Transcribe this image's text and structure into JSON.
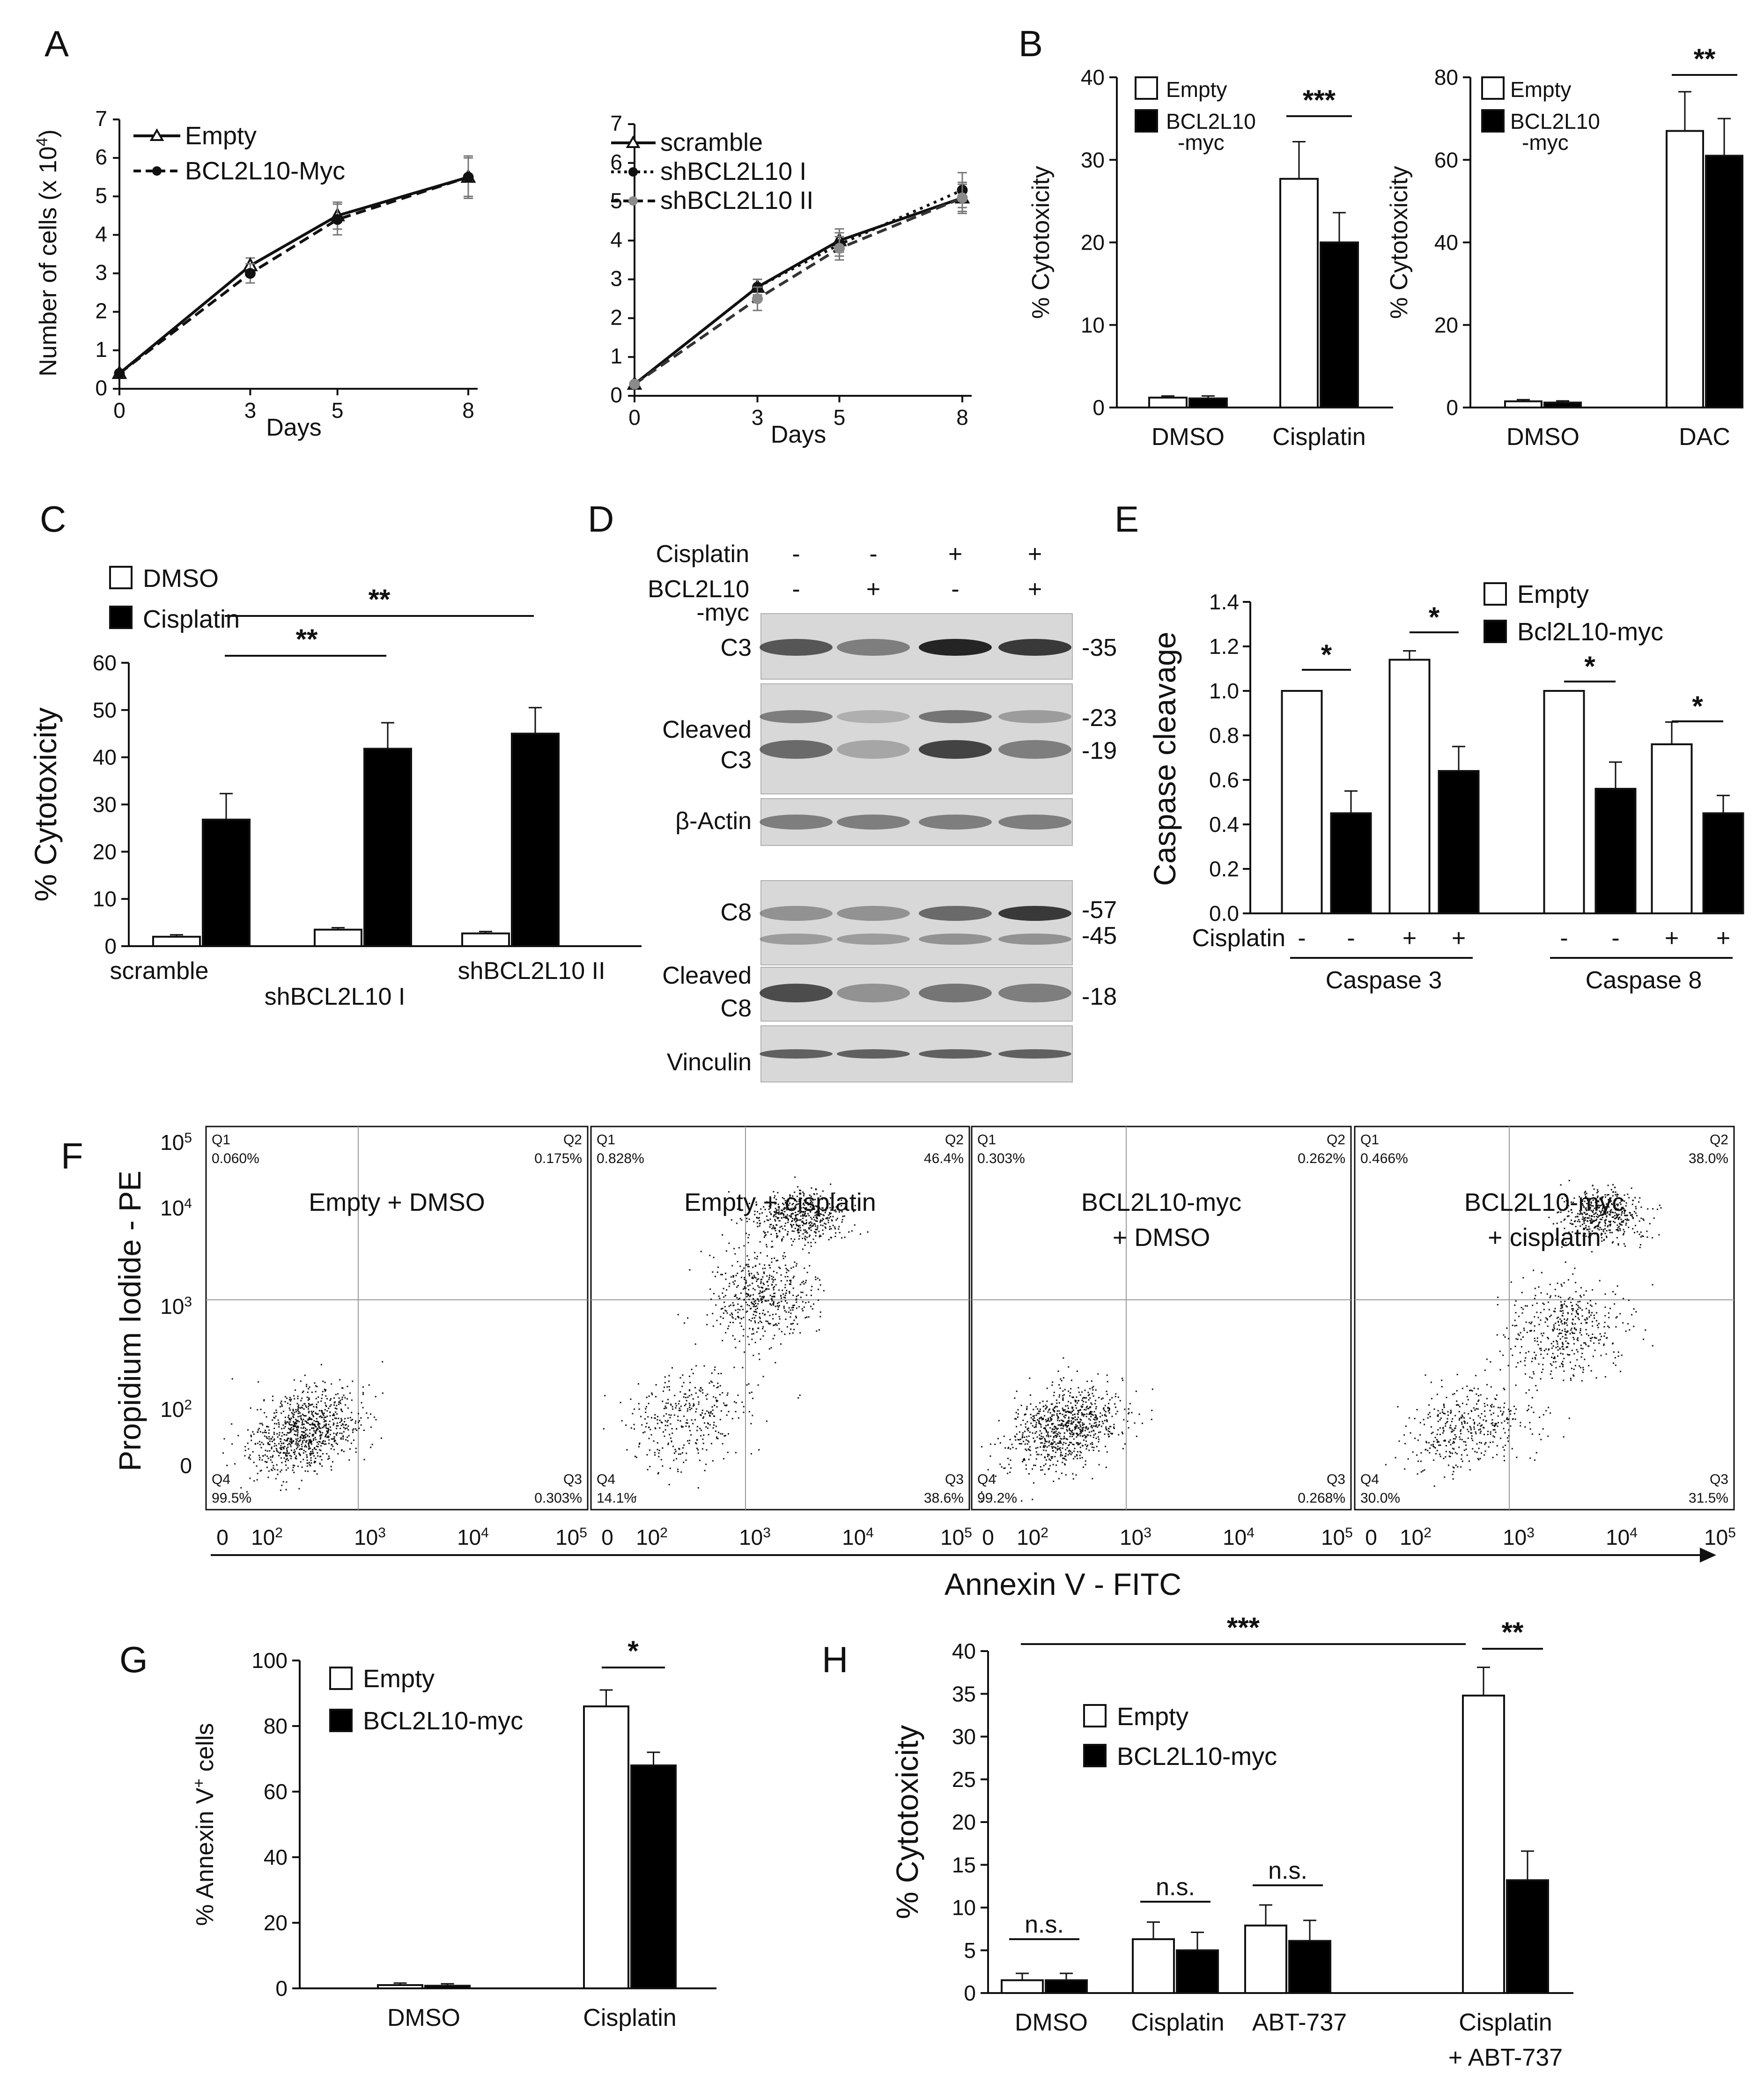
{
  "panel_letters": [
    "A",
    "B",
    "C",
    "D",
    "E",
    "F",
    "G",
    "H"
  ],
  "chart_data": [
    {
      "id": "A1",
      "type": "line",
      "ylabel": "Number of cells (x 10^4)",
      "ylabel_pre": "Number of cells (x 10",
      "ylabel_sup": "4",
      "ylabel_post": ")",
      "xlabel": "Days",
      "x": [
        0,
        3,
        5,
        8
      ],
      "xticks": [
        "0",
        "3",
        "5",
        "8"
      ],
      "ylim": [
        0,
        7
      ],
      "yticks": [
        "0",
        "1",
        "2",
        "3",
        "4",
        "5",
        "6",
        "7"
      ],
      "series": [
        {
          "name": "Empty",
          "values": [
            0.4,
            3.2,
            4.5,
            5.5
          ],
          "err": [
            0.05,
            0.2,
            0.35,
            0.55
          ],
          "marker": "triangle-open",
          "dash": "solid"
        },
        {
          "name": "BCL2L10-Myc",
          "values": [
            0.4,
            3.0,
            4.4,
            5.5
          ],
          "err": [
            0.05,
            0.25,
            0.4,
            0.5
          ],
          "marker": "circle",
          "dash": "dashed"
        }
      ]
    },
    {
      "id": "A2",
      "type": "line",
      "xlabel": "Days",
      "x": [
        0,
        3,
        5,
        8
      ],
      "xticks": [
        "0",
        "3",
        "5",
        "8"
      ],
      "ylim": [
        0,
        7
      ],
      "yticks": [
        "0",
        "1",
        "2",
        "3",
        "4",
        "5",
        "6",
        "7"
      ],
      "series": [
        {
          "name": "scramble",
          "values": [
            0.3,
            2.8,
            4.0,
            5.1
          ],
          "err": [
            0.05,
            0.2,
            0.3,
            0.35
          ],
          "marker": "triangle-open",
          "dash": "solid"
        },
        {
          "name": "shBCL2L10 I",
          "values": [
            0.3,
            2.8,
            3.9,
            5.3
          ],
          "err": [
            0.05,
            0.2,
            0.3,
            0.45
          ],
          "marker": "circle",
          "dash": "dotted"
        },
        {
          "name": "shBCL2L10 II",
          "values": [
            0.3,
            2.5,
            3.8,
            5.1
          ],
          "err": [
            0.05,
            0.3,
            0.3,
            0.4
          ],
          "marker": "circle-gray",
          "dash": "dashed"
        }
      ]
    },
    {
      "id": "B1",
      "type": "bar",
      "ylabel": "% Cytotoxicity",
      "categories": [
        "DMSO",
        "Cisplatin"
      ],
      "ylim": [
        0,
        40
      ],
      "yticks": [
        "0",
        "10",
        "20",
        "30",
        "40"
      ],
      "series": [
        {
          "name": "Empty",
          "values": [
            1.2,
            27.7
          ],
          "err": [
            0.2,
            4.5
          ]
        },
        {
          "name": "BCL2L10 -myc",
          "values": [
            1.1,
            20.0
          ],
          "err": [
            0.3,
            3.6
          ]
        }
      ],
      "legend": [
        "Empty",
        "BCL2L10",
        "-myc"
      ],
      "significance": [
        {
          "label": "***",
          "cat": 1
        }
      ]
    },
    {
      "id": "B2",
      "type": "bar",
      "ylabel": "% Cytotoxicity",
      "categories": [
        "DMSO",
        "DAC"
      ],
      "ylim": [
        0,
        80
      ],
      "yticks": [
        "0",
        "20",
        "40",
        "60",
        "80"
      ],
      "series": [
        {
          "name": "Empty",
          "values": [
            1.5,
            67.0
          ],
          "err": [
            0.4,
            9.5
          ]
        },
        {
          "name": "BCL2L10 -myc",
          "values": [
            1.2,
            61.0
          ],
          "err": [
            0.4,
            9.0
          ]
        }
      ],
      "legend": [
        "Empty",
        "BCL2L10",
        "-myc"
      ],
      "significance": [
        {
          "label": "**",
          "cat": 1
        }
      ]
    },
    {
      "id": "C",
      "type": "bar",
      "ylabel": "% Cytotoxicity",
      "categories": [
        "scramble",
        "shBCL2L10 I",
        "shBCL2L10 II"
      ],
      "ylim": [
        0,
        60
      ],
      "yticks": [
        "0",
        "10",
        "20",
        "30",
        "40",
        "50",
        "60"
      ],
      "series": [
        {
          "name": "DMSO",
          "values": [
            2.0,
            3.5,
            2.7
          ],
          "err": [
            0.4,
            0.4,
            0.4
          ]
        },
        {
          "name": "Cisplatin",
          "values": [
            26.8,
            41.8,
            45.0
          ],
          "err": [
            5.5,
            5.5,
            5.5
          ]
        }
      ],
      "significance": [
        {
          "label": "**",
          "from": 0,
          "to": 1
        },
        {
          "label": "**",
          "from": 0,
          "to": 2
        }
      ]
    },
    {
      "id": "E",
      "type": "bar",
      "ylabel": "Caspase cleavage",
      "ylim": [
        0,
        1.4
      ],
      "yticks": [
        "0.0",
        "0.2",
        "0.4",
        "0.6",
        "0.8",
        "1.0",
        "1.2",
        "1.4"
      ],
      "bars": [
        {
          "group": "Caspase 3",
          "cisplatin": "-",
          "series": "Empty",
          "value": 1.0,
          "err": 0
        },
        {
          "group": "Caspase 3",
          "cisplatin": "-",
          "series": "Bcl2L10-myc",
          "value": 0.45,
          "err": 0.1
        },
        {
          "group": "Caspase 3",
          "cisplatin": "+",
          "series": "Empty",
          "value": 1.14,
          "err": 0.04
        },
        {
          "group": "Caspase 3",
          "cisplatin": "+",
          "series": "Bcl2L10-myc",
          "value": 0.64,
          "err": 0.11
        },
        {
          "group": "Caspase 8",
          "cisplatin": "-",
          "series": "Empty",
          "value": 1.0,
          "err": 0
        },
        {
          "group": "Caspase 8",
          "cisplatin": "-",
          "series": "Bcl2L10-myc",
          "value": 0.56,
          "err": 0.12
        },
        {
          "group": "Caspase 8",
          "cisplatin": "+",
          "series": "Empty",
          "value": 0.76,
          "err": 0.1
        },
        {
          "group": "Caspase 8",
          "cisplatin": "+",
          "series": "Bcl2L10-myc",
          "value": 0.45,
          "err": 0.08
        }
      ],
      "legend": [
        "Empty",
        "Bcl2L10-myc"
      ],
      "row_label": "Cisplatin",
      "groups": [
        "Caspase 3",
        "Caspase 8"
      ],
      "significance": [
        "*",
        "*",
        "*",
        "*"
      ]
    },
    {
      "id": "G",
      "type": "bar",
      "ylabel": "% Annexin V+ cells",
      "ylabel_pre": "% Annexin V",
      "ylabel_sup": "+",
      "ylabel_post": " cells",
      "categories": [
        "DMSO",
        "Cisplatin"
      ],
      "ylim": [
        0,
        100
      ],
      "yticks": [
        "0",
        "20",
        "40",
        "60",
        "80",
        "100"
      ],
      "series": [
        {
          "name": "Empty",
          "values": [
            1.0,
            86.0
          ],
          "err": [
            0.6,
            5.0
          ]
        },
        {
          "name": "BCL2L10-myc",
          "values": [
            0.8,
            68.0
          ],
          "err": [
            0.6,
            4.0
          ]
        }
      ],
      "significance": [
        {
          "label": "*",
          "cat": 1
        }
      ]
    },
    {
      "id": "H",
      "type": "bar",
      "ylabel": "% Cytotoxicity",
      "categories": [
        "DMSO",
        "Cisplatin",
        "ABT-737",
        "Cisplatin + ABT-737"
      ],
      "ylim": [
        0,
        40
      ],
      "yticks": [
        "0",
        "5",
        "10",
        "15",
        "20",
        "25",
        "30",
        "35",
        "40"
      ],
      "series": [
        {
          "name": "Empty",
          "values": [
            1.5,
            6.3,
            7.9,
            34.8
          ],
          "err": [
            0.8,
            2.0,
            2.4,
            3.3
          ]
        },
        {
          "name": "BCL2L10-myc",
          "values": [
            1.5,
            5.0,
            6.1,
            13.2
          ],
          "err": [
            0.8,
            2.1,
            2.4,
            3.4
          ]
        }
      ],
      "significance": [
        {
          "label": "n.s.",
          "cat": 0
        },
        {
          "label": "n.s.",
          "cat": 1
        },
        {
          "label": "n.s.",
          "cat": 2
        },
        {
          "label": "**",
          "cat": 3
        },
        {
          "label": "***",
          "from": 0,
          "to": 3
        }
      ]
    },
    {
      "id": "F",
      "type": "scatter",
      "xlabel": "Annexin V - FITC",
      "ylabel": "Propidium Iodide - PE",
      "xticks": [
        "0",
        "10^2",
        "10^3",
        "10^4",
        "10^5"
      ],
      "yticks": [
        "0",
        "10^2",
        "10^3",
        "10^4",
        "10^5"
      ],
      "plots": [
        {
          "title": [
            "Empty + DMSO"
          ],
          "Q1": "0.060%",
          "Q2": "0.175%",
          "Q3": "0.303%",
          "Q4": "99.5%"
        },
        {
          "title": [
            "Empty + cisplatin"
          ],
          "Q1": "0.828%",
          "Q2": "46.4%",
          "Q3": "38.6%",
          "Q4": "14.1%"
        },
        {
          "title": [
            "BCL2L10-myc",
            "+ DMSO"
          ],
          "Q1": "0.303%",
          "Q2": "0.262%",
          "Q3": "0.268%",
          "Q4": "99.2%"
        },
        {
          "title": [
            "BCL2L10-myc",
            "+ cisplatin"
          ],
          "Q1": "0.466%",
          "Q2": "38.0%",
          "Q3": "31.5%",
          "Q4": "30.0%"
        }
      ]
    }
  ],
  "blot": {
    "header_rows": [
      {
        "label": "Cisplatin",
        "signs": [
          "-",
          "-",
          "+",
          "+"
        ]
      },
      {
        "label": "BCL2L10",
        "label2": "-myc",
        "signs": [
          "-",
          "+",
          "-",
          "+"
        ]
      }
    ],
    "band_labels": [
      "C3",
      "Cleaved",
      "C3",
      "β-Actin",
      "C8",
      "Cleaved",
      "C8",
      "Vinculin"
    ],
    "markers": [
      "-35",
      "-23",
      "-19",
      "-57",
      "-45",
      "-18"
    ]
  },
  "colors": {
    "empty": "#ffffff",
    "treated": "#000000",
    "gray": "#8a8a8a",
    "axis": "#111111"
  }
}
